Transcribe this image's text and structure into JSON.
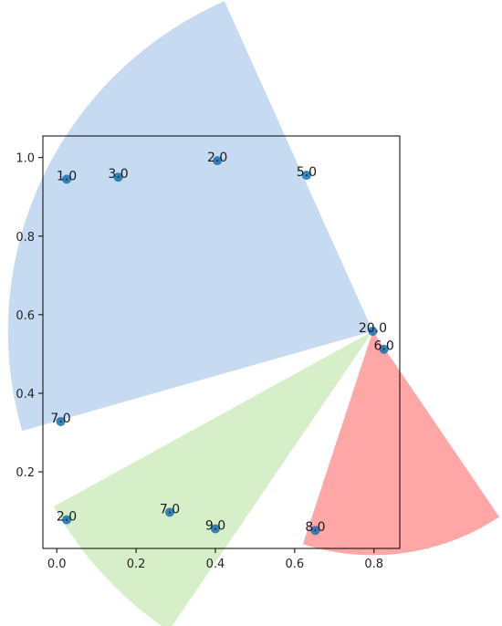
{
  "chart_data": {
    "type": "scatter",
    "title": "",
    "xlabel": "",
    "ylabel": "",
    "xlim": [
      -0.035,
      0.865
    ],
    "ylim": [
      0.005,
      1.055
    ],
    "x_ticks": [
      "0.0",
      "0.2",
      "0.4",
      "0.6",
      "0.8"
    ],
    "y_ticks": [
      "0.2",
      "0.4",
      "0.6",
      "0.8",
      "1.0"
    ],
    "grid": false,
    "point_color": "#1f77b4",
    "points": [
      {
        "x": 0.025,
        "y": 0.945,
        "label": "1.0"
      },
      {
        "x": 0.155,
        "y": 0.95,
        "label": "3.0"
      },
      {
        "x": 0.405,
        "y": 0.992,
        "label": "2.0"
      },
      {
        "x": 0.63,
        "y": 0.955,
        "label": "5.0"
      },
      {
        "x": 0.797,
        "y": 0.558,
        "label": "20.0"
      },
      {
        "x": 0.825,
        "y": 0.512,
        "label": "6.0"
      },
      {
        "x": 0.01,
        "y": 0.328,
        "label": "7.0"
      },
      {
        "x": 0.025,
        "y": 0.078,
        "label": "2.0"
      },
      {
        "x": 0.285,
        "y": 0.097,
        "label": "7.0"
      },
      {
        "x": 0.4,
        "y": 0.055,
        "label": "9.0"
      },
      {
        "x": 0.652,
        "y": 0.051,
        "label": "8.0"
      }
    ],
    "wedges": [
      {
        "color": "#a8c8ea",
        "opacity": 0.65,
        "center": [
          0.797,
          0.558
        ],
        "radius": 0.92,
        "start_deg": 114,
        "end_deg": 196
      },
      {
        "color": "#b6e29c",
        "opacity": 0.55,
        "center": [
          0.797,
          0.558
        ],
        "radius": 0.92,
        "start_deg": 209,
        "end_deg": 236
      },
      {
        "color": "#ff5c5c",
        "opacity": 0.55,
        "center": [
          0.797,
          0.558
        ],
        "radius": 0.57,
        "start_deg": 252,
        "end_deg": 304
      }
    ]
  }
}
